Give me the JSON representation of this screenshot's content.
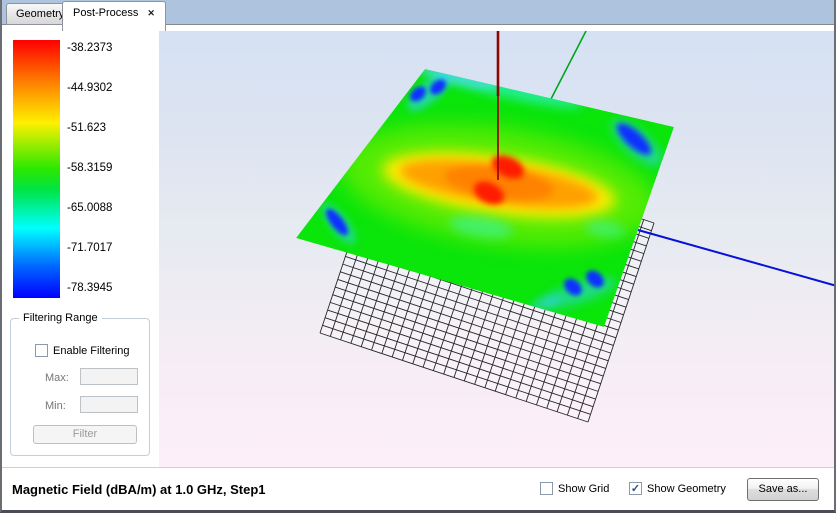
{
  "tabs": [
    {
      "label": "Geometry",
      "active": false
    },
    {
      "label": "Post-Process",
      "active": true,
      "close_glyph": "✕"
    }
  ],
  "colorbar": {
    "labels": [
      "-38.2373",
      "-44.9302",
      "-51.623",
      "-58.3159",
      "-65.0088",
      "-71.7017",
      "-78.3945"
    ],
    "gradient_top_to_bottom": [
      "#ff0000",
      "#ff8400",
      "#fff000",
      "#2ae800",
      "#00ffff",
      "#0000ff"
    ]
  },
  "filtering": {
    "title": "Filtering Range",
    "enable_label": "Enable Filtering",
    "enable_checked": false,
    "max_label": "Max:",
    "max_value": "",
    "min_label": "Min:",
    "min_value": "",
    "filter_button": "Filter"
  },
  "viewport": {
    "axis_colors": {
      "x_blue": "#0512d8",
      "y_green": "#00a520",
      "z_red": "#8d0606"
    },
    "field_plane_base_color": "#0ae50a"
  },
  "status": {
    "title": "Magnetic Field (dBA/m) at 1.0 GHz, Step1",
    "show_grid_label": "Show Grid",
    "show_grid_checked": false,
    "show_geometry_label": "Show Geometry",
    "show_geometry_checked": true,
    "check_glyph": "✓",
    "save_button": "Save as..."
  }
}
